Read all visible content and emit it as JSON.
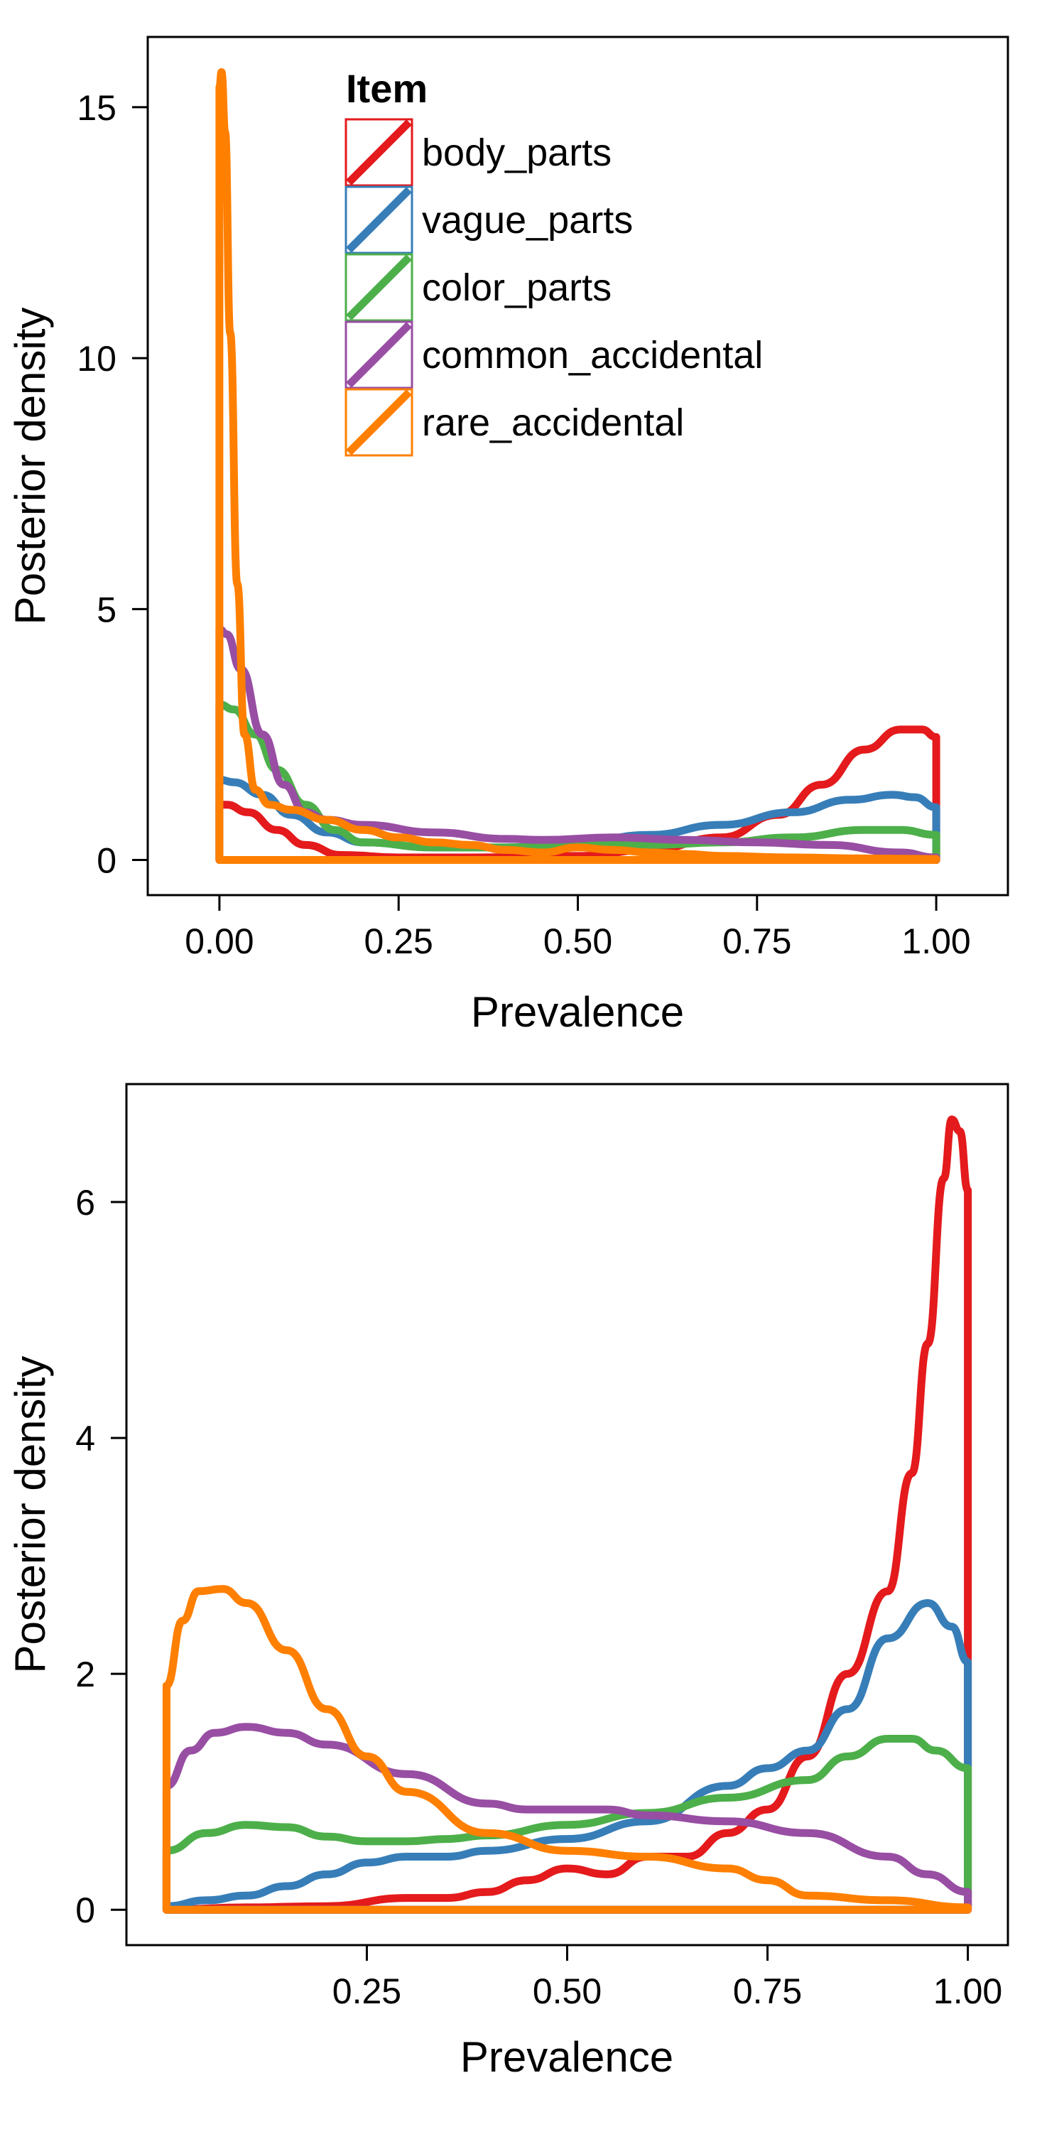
{
  "legend": {
    "title": "Item",
    "items": [
      {
        "label": "body_parts",
        "color": "#e41a1c"
      },
      {
        "label": "vague_parts",
        "color": "#377eb8"
      },
      {
        "label": "color_parts",
        "color": "#4daf4a"
      },
      {
        "label": "common_accidental",
        "color": "#984ea3"
      },
      {
        "label": "rare_accidental",
        "color": "#ff7f00"
      }
    ]
  },
  "chart_data": [
    {
      "type": "area",
      "xlabel": "Prevalence",
      "ylabel": "Posterior density",
      "xlim": [
        -0.1,
        1.1
      ],
      "ylim": [
        -0.7,
        16.4
      ],
      "xticks": [
        0,
        0.25,
        0.5,
        0.75,
        1
      ],
      "xtick_labels": [
        "0.00",
        "0.25",
        "0.50",
        "0.75",
        "1.00"
      ],
      "yticks": [
        0,
        5,
        10,
        15
      ],
      "ytick_labels": [
        "0",
        "5",
        "10",
        "15"
      ],
      "legend_position": "top-right",
      "series": [
        {
          "name": "body_parts",
          "color": "#e41a1c",
          "x": [
            0,
            0.01,
            0.04,
            0.08,
            0.12,
            0.17,
            0.25,
            0.35,
            0.5,
            0.6,
            0.7,
            0.78,
            0.84,
            0.9,
            0.95,
            0.98,
            1.0
          ],
          "y": [
            1.1,
            1.1,
            0.95,
            0.6,
            0.3,
            0.1,
            0.05,
            0.05,
            0.08,
            0.2,
            0.45,
            0.9,
            1.5,
            2.2,
            2.6,
            2.6,
            2.45
          ]
        },
        {
          "name": "vague_parts",
          "color": "#377eb8",
          "x": [
            0,
            0.02,
            0.06,
            0.1,
            0.15,
            0.2,
            0.3,
            0.4,
            0.5,
            0.6,
            0.7,
            0.8,
            0.88,
            0.94,
            0.97,
            1.0
          ],
          "y": [
            1.6,
            1.55,
            1.3,
            0.9,
            0.55,
            0.35,
            0.25,
            0.25,
            0.35,
            0.5,
            0.7,
            0.95,
            1.2,
            1.3,
            1.25,
            1.05
          ]
        },
        {
          "name": "color_parts",
          "color": "#4daf4a",
          "x": [
            0,
            0.02,
            0.05,
            0.08,
            0.12,
            0.16,
            0.2,
            0.3,
            0.4,
            0.5,
            0.6,
            0.7,
            0.8,
            0.9,
            0.95,
            1.0
          ],
          "y": [
            3.1,
            3.0,
            2.5,
            1.8,
            1.1,
            0.6,
            0.35,
            0.25,
            0.25,
            0.3,
            0.3,
            0.35,
            0.45,
            0.6,
            0.6,
            0.5
          ]
        },
        {
          "name": "common_accidental",
          "color": "#984ea3",
          "x": [
            0,
            0.01,
            0.03,
            0.06,
            0.09,
            0.12,
            0.15,
            0.2,
            0.3,
            0.4,
            0.45,
            0.55,
            0.65,
            0.75,
            0.85,
            0.95,
            1.0
          ],
          "y": [
            4.6,
            4.5,
            3.8,
            2.5,
            1.5,
            0.95,
            0.8,
            0.7,
            0.55,
            0.42,
            0.4,
            0.45,
            0.4,
            0.35,
            0.3,
            0.15,
            0.05
          ]
        },
        {
          "name": "rare_accidental",
          "color": "#ff7f00",
          "x": [
            0,
            0.003,
            0.008,
            0.015,
            0.025,
            0.035,
            0.05,
            0.07,
            0.1,
            0.15,
            0.2,
            0.25,
            0.3,
            0.35,
            0.4,
            0.45,
            0.5,
            0.55,
            0.6,
            0.65,
            0.7,
            0.8,
            0.9,
            1.0
          ],
          "y": [
            15.4,
            15.7,
            14.5,
            10.5,
            5.5,
            2.5,
            1.4,
            1.1,
            1.0,
            0.8,
            0.6,
            0.45,
            0.35,
            0.3,
            0.2,
            0.15,
            0.25,
            0.2,
            0.15,
            0.12,
            0.08,
            0.05,
            0.03,
            0.02
          ]
        }
      ]
    },
    {
      "type": "area",
      "xlabel": "Prevalence",
      "ylabel": "Posterior density",
      "xlim": [
        -0.05,
        1.05
      ],
      "ylim": [
        -0.3,
        7.0
      ],
      "xticks": [
        0.25,
        0.5,
        0.75,
        1
      ],
      "xtick_labels": [
        "0.25",
        "0.50",
        "0.75",
        "1.00"
      ],
      "yticks": [
        0,
        2,
        4,
        6
      ],
      "ytick_labels": [
        "0",
        "2",
        "4",
        "6"
      ],
      "series": [
        {
          "name": "body_parts",
          "color": "#e41a1c",
          "x": [
            0,
            0.1,
            0.2,
            0.3,
            0.35,
            0.4,
            0.45,
            0.5,
            0.55,
            0.6,
            0.65,
            0.7,
            0.75,
            0.8,
            0.85,
            0.9,
            0.93,
            0.95,
            0.97,
            0.98,
            0.99,
            1.0
          ],
          "y": [
            0.0,
            0.02,
            0.03,
            0.1,
            0.1,
            0.15,
            0.25,
            0.35,
            0.3,
            0.45,
            0.45,
            0.65,
            0.85,
            1.3,
            2.0,
            2.7,
            3.7,
            4.8,
            6.2,
            6.7,
            6.6,
            6.1
          ]
        },
        {
          "name": "vague_parts",
          "color": "#377eb8",
          "x": [
            0,
            0.05,
            0.1,
            0.15,
            0.2,
            0.25,
            0.3,
            0.35,
            0.4,
            0.5,
            0.6,
            0.7,
            0.75,
            0.8,
            0.85,
            0.9,
            0.95,
            0.98,
            1.0
          ],
          "y": [
            0.03,
            0.08,
            0.12,
            0.2,
            0.3,
            0.4,
            0.45,
            0.45,
            0.5,
            0.6,
            0.75,
            1.05,
            1.2,
            1.35,
            1.7,
            2.3,
            2.6,
            2.4,
            2.1
          ]
        },
        {
          "name": "color_parts",
          "color": "#4daf4a",
          "x": [
            0,
            0.05,
            0.1,
            0.15,
            0.2,
            0.25,
            0.3,
            0.35,
            0.4,
            0.5,
            0.6,
            0.7,
            0.8,
            0.85,
            0.9,
            0.93,
            0.96,
            1.0
          ],
          "y": [
            0.5,
            0.65,
            0.72,
            0.7,
            0.62,
            0.58,
            0.58,
            0.6,
            0.63,
            0.72,
            0.82,
            0.95,
            1.1,
            1.3,
            1.45,
            1.45,
            1.35,
            1.2
          ]
        },
        {
          "name": "common_accidental",
          "color": "#984ea3",
          "x": [
            0,
            0.03,
            0.06,
            0.1,
            0.15,
            0.2,
            0.3,
            0.4,
            0.45,
            0.5,
            0.55,
            0.6,
            0.7,
            0.8,
            0.9,
            0.95,
            1.0
          ],
          "y": [
            1.05,
            1.35,
            1.5,
            1.55,
            1.5,
            1.4,
            1.15,
            0.9,
            0.85,
            0.85,
            0.85,
            0.8,
            0.75,
            0.65,
            0.45,
            0.3,
            0.15
          ]
        },
        {
          "name": "rare_accidental",
          "color": "#ff7f00",
          "x": [
            0,
            0.02,
            0.04,
            0.07,
            0.1,
            0.15,
            0.2,
            0.25,
            0.3,
            0.4,
            0.5,
            0.6,
            0.7,
            0.75,
            0.8,
            0.9,
            1.0
          ],
          "y": [
            1.9,
            2.45,
            2.7,
            2.72,
            2.6,
            2.2,
            1.7,
            1.3,
            1.0,
            0.65,
            0.5,
            0.45,
            0.35,
            0.25,
            0.12,
            0.08,
            0.02
          ]
        }
      ]
    }
  ]
}
